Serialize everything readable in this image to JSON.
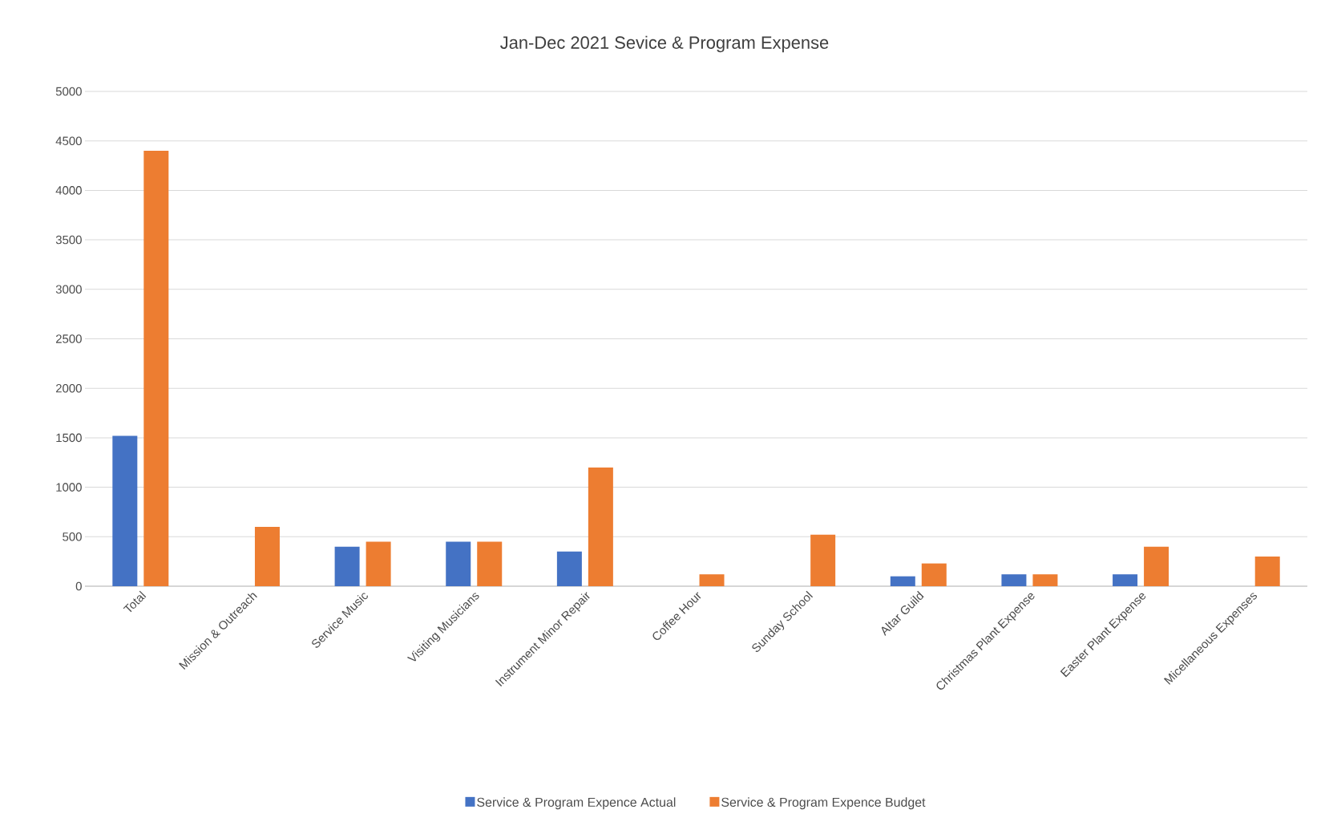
{
  "chart_data": {
    "type": "bar",
    "title": "Jan-Dec  2021 Sevice & Program Expense",
    "categories": [
      "Total",
      "Mission & Outreach",
      "Service Music",
      "Visiting Musicians",
      "Instrument Minor Repair",
      "Coffee Hour",
      "Sunday School",
      "Altar Guild",
      "Christmas Plant Expense",
      "Easter Plant Expense",
      "Micellaneous Expenses"
    ],
    "series": [
      {
        "name": "Service & Program Expence Actual",
        "color": "#4472c4",
        "values": [
          1520,
          0,
          400,
          450,
          350,
          0,
          0,
          100,
          120,
          120,
          0
        ]
      },
      {
        "name": "Service & Program Expence Budget",
        "color": "#ed7d31",
        "values": [
          4400,
          600,
          450,
          450,
          1200,
          120,
          520,
          230,
          120,
          400,
          300
        ]
      }
    ],
    "ylim": [
      0,
      5000
    ],
    "yticks": [
      0,
      500,
      1000,
      1500,
      2000,
      2500,
      3000,
      3500,
      4000,
      4500,
      5000
    ],
    "grid": "y",
    "legend": "bottom"
  }
}
